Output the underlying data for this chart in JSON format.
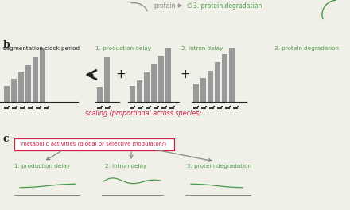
{
  "bg_color": "#f0f0e8",
  "gray_color": "#888888",
  "green_color": "#4a9a4a",
  "red_color": "#cc2244",
  "dark_color": "#222222",
  "bars_main": [
    0.3,
    0.42,
    0.55,
    0.68,
    0.82,
    1.0
  ],
  "bars_prod": [
    0.28,
    0.82
  ],
  "bars_intron": [
    0.3,
    0.4,
    0.55,
    0.7,
    0.85,
    1.0
  ],
  "bars_prot": [
    0.32,
    0.44,
    0.58,
    0.74,
    0.88,
    1.0
  ],
  "seg_clock_label": "segmentation clock period",
  "prod_delay_label": "1. production delay",
  "intron_delay_label": "2. intron delay",
  "prot_deg_label": "3. protein degradation",
  "scaling_label": "scaling (proportional across species)",
  "metabolic_label": "metabolic activities (global or selective modulator?)",
  "c_prod_label": "1. production delay",
  "c_intron_label": "2. intron delay",
  "c_prot_label": "3. protein degradation"
}
